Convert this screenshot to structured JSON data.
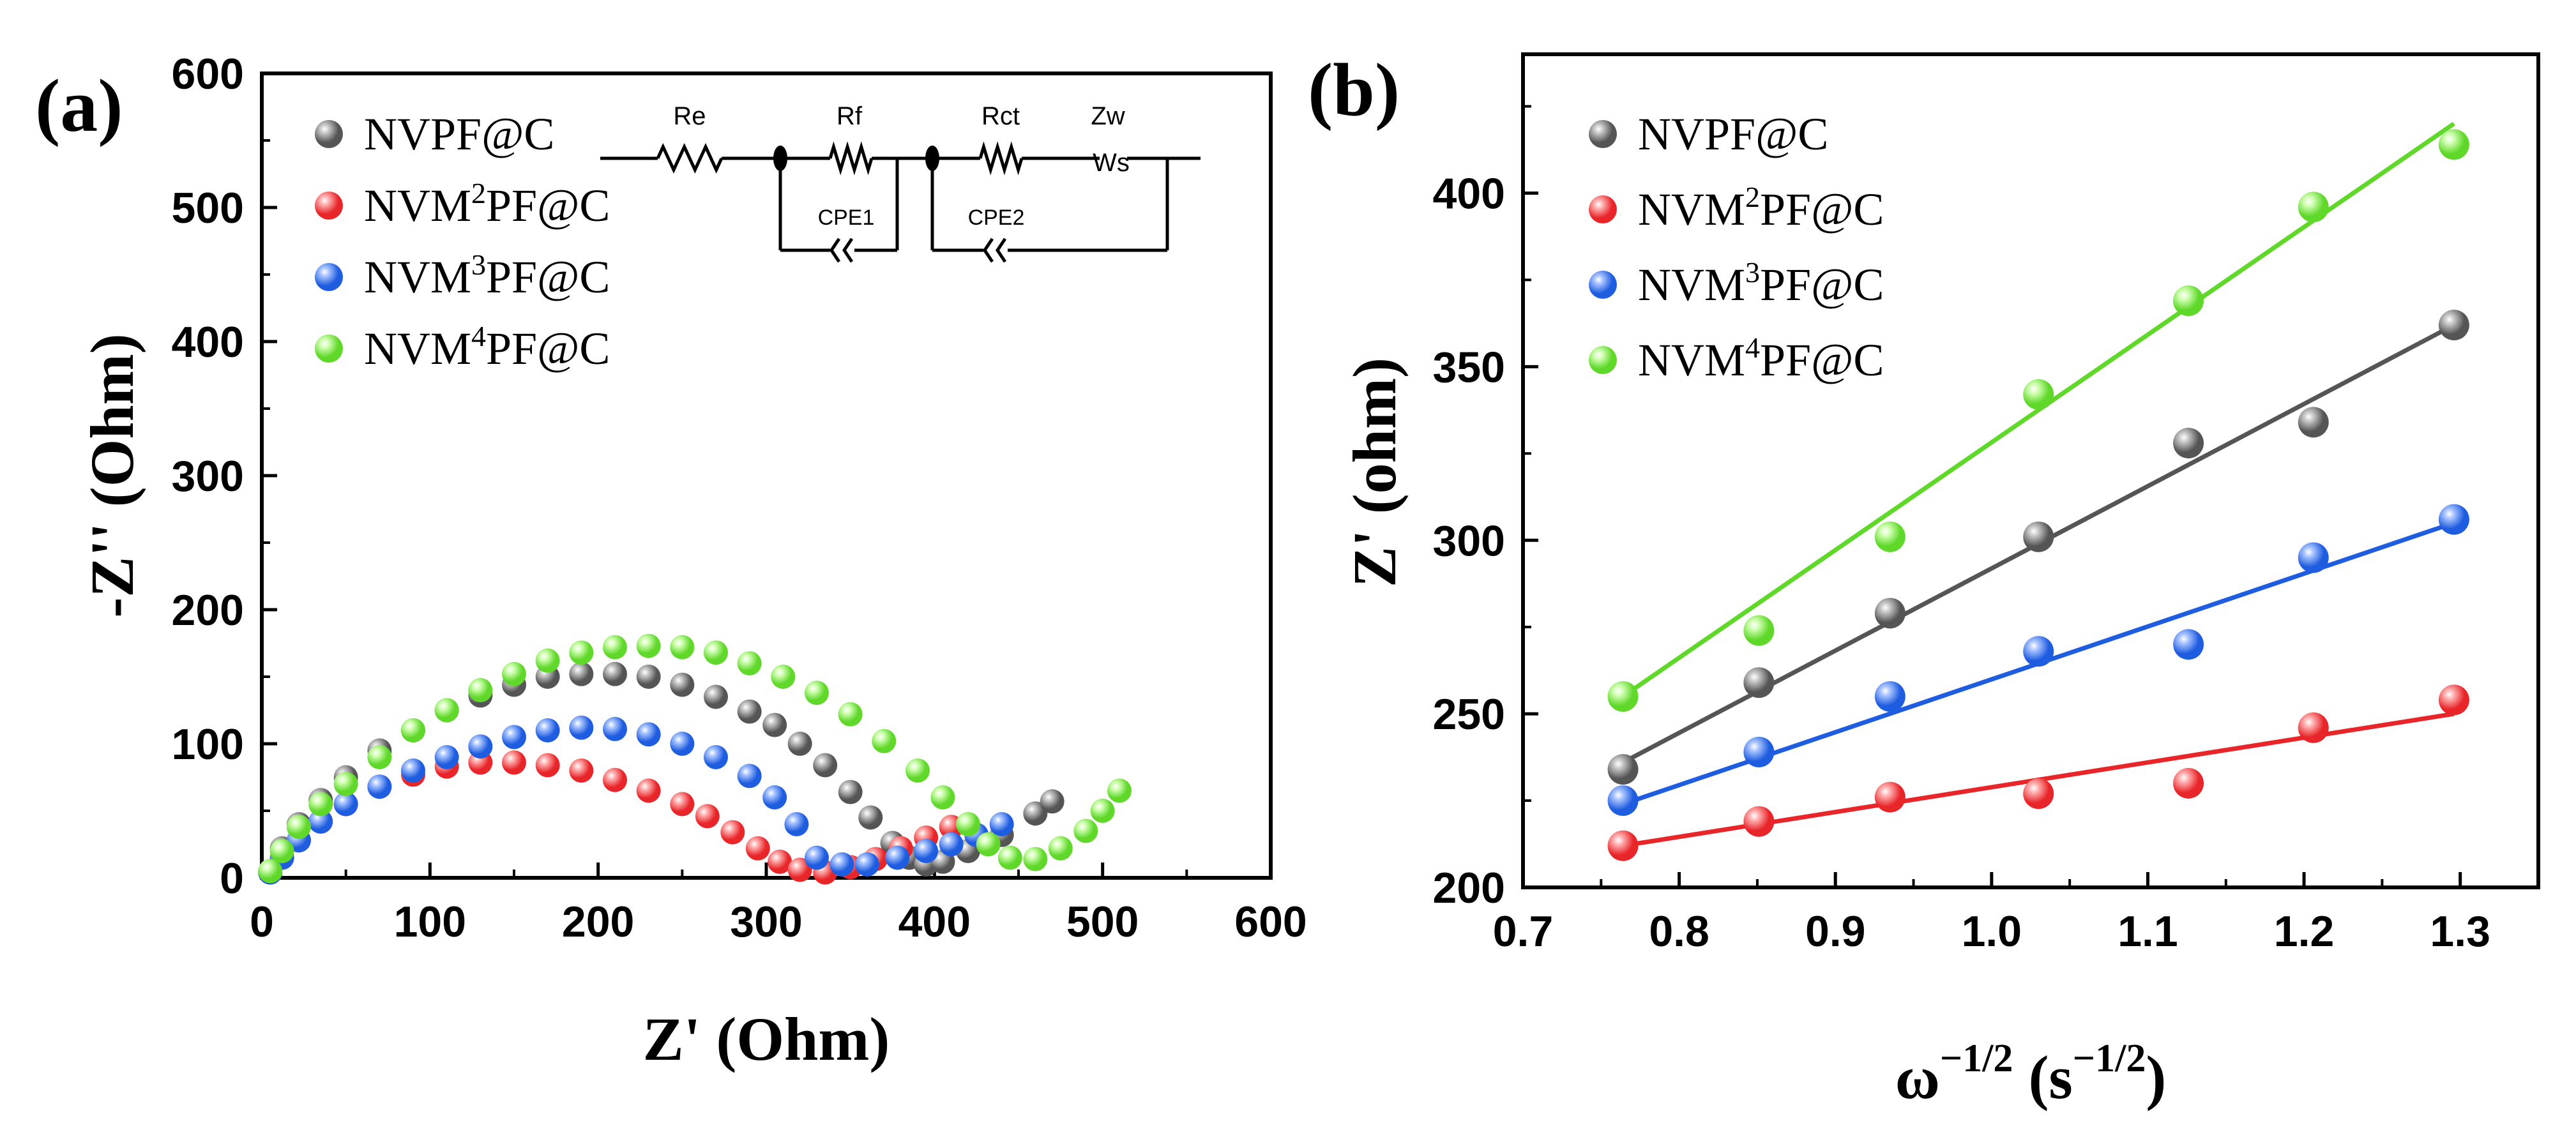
{
  "chart_data": [
    {
      "panel_label": "(a)",
      "type": "scatter",
      "xlabel": "Z' (Ohm)",
      "ylabel": "-Z'' (Ohm)",
      "xlim": [
        0,
        600
      ],
      "ylim": [
        0,
        600
      ],
      "xticks": [
        0,
        100,
        200,
        300,
        400,
        500,
        600
      ],
      "yticks": [
        0,
        100,
        200,
        300,
        400,
        500,
        600
      ],
      "grid": false,
      "legend_position": "top-left",
      "series": [
        {
          "name": "NVPF@C",
          "name_parts": [
            "NVPF@C",
            "",
            ""
          ],
          "color": "#555555",
          "highlight": "#c8c8c8",
          "x": [
            5,
            12,
            22,
            35,
            50,
            70,
            90,
            110,
            130,
            150,
            170,
            190,
            210,
            230,
            250,
            270,
            290,
            305,
            320,
            335,
            350,
            362,
            375,
            385,
            395,
            405,
            420,
            440,
            460,
            470
          ],
          "y": [
            5,
            22,
            40,
            58,
            75,
            95,
            110,
            125,
            136,
            144,
            150,
            152,
            152,
            150,
            144,
            135,
            124,
            114,
            100,
            84,
            64,
            45,
            26,
            15,
            10,
            12,
            20,
            32,
            48,
            57
          ]
        },
        {
          "name": "NVM2PF@C",
          "name_parts": [
            "NVM",
            "2",
            "PF@C"
          ],
          "color": "#e8262a",
          "highlight": "#ffb0b0",
          "x": [
            5,
            12,
            22,
            35,
            50,
            70,
            90,
            110,
            130,
            150,
            170,
            190,
            210,
            230,
            250,
            265,
            280,
            295,
            308,
            320,
            335,
            350,
            365,
            380,
            395,
            410
          ],
          "y": [
            4,
            15,
            28,
            42,
            55,
            68,
            77,
            83,
            86,
            86,
            84,
            80,
            73,
            65,
            55,
            46,
            34,
            22,
            12,
            6,
            4,
            8,
            14,
            22,
            30,
            38
          ]
        },
        {
          "name": "NVM3PF@C",
          "name_parts": [
            "NVM",
            "3",
            "PF@C"
          ],
          "color": "#1f5de0",
          "highlight": "#a9c4ff",
          "x": [
            5,
            12,
            22,
            35,
            50,
            70,
            90,
            110,
            130,
            150,
            170,
            190,
            210,
            230,
            250,
            270,
            290,
            305,
            318,
            330,
            345,
            360,
            378,
            395,
            410,
            425,
            440
          ],
          "y": [
            4,
            15,
            28,
            42,
            55,
            68,
            80,
            90,
            98,
            105,
            110,
            112,
            111,
            107,
            100,
            90,
            76,
            60,
            40,
            15,
            10,
            10,
            15,
            20,
            25,
            32,
            40
          ]
        },
        {
          "name": "NVM4PF@C",
          "name_parts": [
            "NVM",
            "4",
            "PF@C"
          ],
          "color": "#5fd82a",
          "highlight": "#d2ffb4",
          "x": [
            5,
            12,
            22,
            35,
            50,
            70,
            90,
            110,
            130,
            150,
            170,
            190,
            210,
            230,
            250,
            270,
            290,
            310,
            330,
            350,
            370,
            390,
            405,
            420,
            432,
            445,
            460,
            475,
            490,
            500,
            510
          ],
          "y": [
            5,
            20,
            38,
            55,
            70,
            90,
            110,
            125,
            140,
            152,
            162,
            168,
            172,
            173,
            172,
            168,
            160,
            150,
            138,
            122,
            102,
            80,
            60,
            40,
            25,
            15,
            14,
            22,
            35,
            50,
            65
          ]
        }
      ],
      "inset_circuit_labels": [
        "Re",
        "Rf",
        "Rct",
        "Zw",
        "CPE1",
        "CPE2",
        "Ws"
      ]
    },
    {
      "panel_label": "(b)",
      "type": "scatter",
      "xlabel_base": "ω",
      "xlabel_exp": "−1/2",
      "xlabel_unit_base": "s",
      "xlabel_unit_exp": "−1/2",
      "ylabel": "Z' (ohm)",
      "xlim": [
        0.7,
        1.35
      ],
      "ylim": [
        200,
        440
      ],
      "xticks": [
        0.7,
        0.8,
        0.9,
        1.0,
        1.1,
        1.2,
        1.3
      ],
      "yticks": [
        200,
        250,
        300,
        350,
        400
      ],
      "grid": false,
      "legend_position": "top-left",
      "x": [
        0.764,
        0.851,
        0.935,
        1.03,
        1.126,
        1.206,
        1.296
      ],
      "series": [
        {
          "name": "NVPF@C",
          "name_parts": [
            "NVPF@C",
            "",
            ""
          ],
          "color": "#555555",
          "highlight": "#c8c8c8",
          "values": [
            234,
            259,
            279,
            301,
            328,
            334,
            362
          ],
          "fit": [
            [
              0.764,
              236
            ],
            [
              1.296,
              362
            ]
          ]
        },
        {
          "name": "NVM2PF@C",
          "name_parts": [
            "NVM",
            "2",
            "PF@C"
          ],
          "color": "#e8262a",
          "highlight": "#ffb0b0",
          "values": [
            212,
            219,
            226,
            227,
            230,
            246,
            254
          ],
          "fit": [
            [
              0.764,
              212
            ],
            [
              1.296,
              250
            ]
          ]
        },
        {
          "name": "NVM3PF@C",
          "name_parts": [
            "NVM",
            "3",
            "PF@C"
          ],
          "color": "#1f5de0",
          "highlight": "#a9c4ff",
          "values": [
            225,
            239,
            255,
            268,
            270,
            295,
            306
          ],
          "fit": [
            [
              0.764,
              224
            ],
            [
              1.296,
              305
            ]
          ]
        },
        {
          "name": "NVM4PF@C",
          "name_parts": [
            "NVM",
            "4",
            "PF@C"
          ],
          "color": "#5fd82a",
          "highlight": "#d2ffb4",
          "values": [
            255,
            274,
            301,
            342,
            369,
            396,
            414
          ],
          "fit": [
            [
              0.764,
              255
            ],
            [
              1.296,
              420
            ]
          ]
        }
      ]
    }
  ]
}
